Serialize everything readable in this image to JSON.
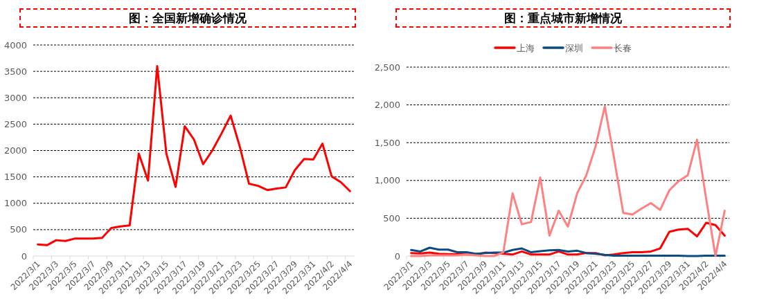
{
  "chart_data": [
    {
      "type": "line",
      "title": "图：全国新增确诊情况",
      "categories": [
        "2022/3/1",
        null,
        "2022/3/3",
        null,
        "2022/3/5",
        null,
        "2022/3/7",
        null,
        "2022/3/9",
        null,
        "2022/3/11",
        null,
        "2022/3/13",
        null,
        "2022/3/15",
        null,
        "2022/3/17",
        null,
        "2022/3/19",
        null,
        "2022/3/21",
        null,
        "2022/3/23",
        null,
        "2022/3/25",
        null,
        "2022/3/27",
        null,
        "2022/3/29",
        null,
        "2022/3/31",
        null,
        "2022/4/2",
        null,
        "2022/4/4"
      ],
      "series": [
        {
          "color": "#ff0000",
          "values": [
            220,
            205,
            300,
            285,
            330,
            330,
            330,
            345,
            530,
            560,
            580,
            1940,
            1430,
            3600,
            1940,
            1310,
            2460,
            2210,
            1740,
            2000,
            2320,
            2660,
            2070,
            1370,
            1330,
            1250,
            1280,
            1300,
            1630,
            1840,
            1830,
            2130,
            1510,
            1400,
            1230
          ]
        }
      ],
      "ylim": [
        0,
        4000
      ],
      "yticks": [
        0,
        500,
        1000,
        1500,
        2000,
        2500,
        3000,
        3500,
        4000
      ],
      "grid": "y",
      "legend": false
    },
    {
      "type": "line",
      "title": "图：重点城市新增情况",
      "categories": [
        "2022/3/1",
        null,
        "2022/3/3",
        null,
        "2022/3/5",
        null,
        "2022/3/7",
        null,
        "2022/3/9",
        null,
        "2022/3/11",
        null,
        "2022/3/13",
        null,
        "2022/3/15",
        null,
        "2022/3/17",
        null,
        "2022/3/19",
        null,
        "2022/3/21",
        null,
        "2022/3/23",
        null,
        "2022/3/25",
        null,
        "2022/3/27",
        null,
        "2022/3/29",
        null,
        "2022/3/31",
        null,
        "2022/4/2",
        null,
        "2022/4/4"
      ],
      "series": [
        {
          "name": "上海",
          "color": "#ff0000",
          "values": [
            40,
            35,
            45,
            30,
            25,
            25,
            20,
            15,
            45,
            40,
            30,
            20,
            60,
            20,
            20,
            20,
            60,
            20,
            20,
            40,
            40,
            10,
            20,
            40,
            50,
            50,
            60,
            100,
            320,
            350,
            360,
            260,
            440,
            410,
            270
          ]
        },
        {
          "name": "深圳",
          "color": "#0b4a82",
          "values": [
            80,
            60,
            110,
            85,
            85,
            50,
            50,
            30,
            40,
            45,
            45,
            80,
            100,
            50,
            65,
            75,
            80,
            60,
            70,
            40,
            30,
            15,
            5,
            5,
            5,
            5,
            5,
            5,
            5,
            5,
            0,
            0,
            5,
            5,
            5
          ]
        },
        {
          "name": "长春",
          "color": "#ff8080",
          "values": [
            0,
            0,
            10,
            10,
            10,
            10,
            20,
            10,
            0,
            0,
            50,
            830,
            420,
            450,
            1040,
            270,
            600,
            390,
            830,
            1070,
            1450,
            1980,
            1300,
            570,
            550,
            630,
            700,
            610,
            870,
            990,
            1070,
            1540,
            750,
            0,
            600
          ]
        }
      ],
      "ylim": [
        0,
        2500
      ],
      "yticks": [
        {
          "value": 0,
          "label": "0"
        },
        {
          "value": 500,
          "label": "500"
        },
        {
          "value": 1000,
          "label": "1,000"
        },
        {
          "value": 1500,
          "label": "1,500"
        },
        {
          "value": 2000,
          "label": "2,000"
        },
        {
          "value": 2500,
          "label": "2,500"
        }
      ],
      "grid": "y",
      "legend": "top"
    }
  ]
}
